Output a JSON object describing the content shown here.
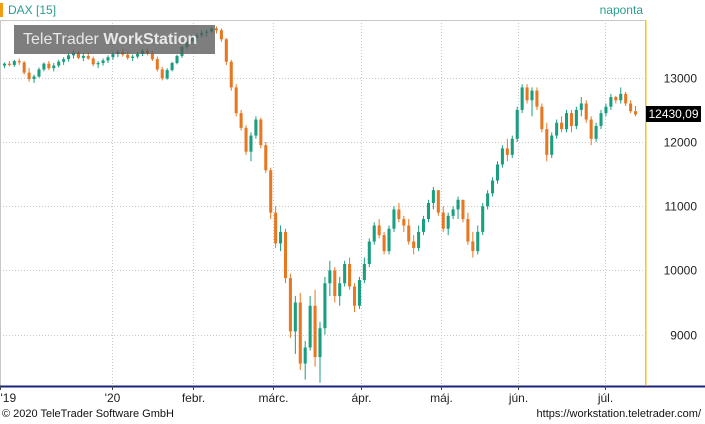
{
  "header": {
    "instrument": "DAX [15]",
    "period": "naponta"
  },
  "watermark": {
    "part1": "TeleTrader ",
    "part2": "WorkStation"
  },
  "footer": {
    "copyright": "© 2020 TeleTrader Software GmbH",
    "url": "https://workstation.teletrader.com/"
  },
  "last_price_label": "12430,09",
  "colors": {
    "up": "#1a9e80",
    "down": "#e87722",
    "accent": "#f39c12",
    "title": "#2a9d8f"
  },
  "chart_data": {
    "type": "candlestick",
    "title": "DAX [15]",
    "period": "naponta",
    "x_tick_labels": [
      "'19",
      "'20",
      "febr.",
      "márc.",
      "ápr.",
      "máj.",
      "jún.",
      "júl."
    ],
    "y_ticks": [
      9000,
      10000,
      11000,
      12000,
      13000
    ],
    "y_tick_labels": [
      "9000",
      "10000",
      "11000",
      "12000",
      "13000"
    ],
    "ylim": [
      8200,
      13900
    ],
    "last_value": 12430.09,
    "grid": true,
    "candles": [
      [
        13190,
        13240,
        13150,
        13220
      ],
      [
        13220,
        13260,
        13180,
        13200
      ],
      [
        13200,
        13280,
        13170,
        13260
      ],
      [
        13260,
        13300,
        13200,
        13240
      ],
      [
        13240,
        13260,
        13050,
        13080
      ],
      [
        13080,
        13150,
        12940,
        12980
      ],
      [
        12980,
        13050,
        12920,
        13020
      ],
      [
        13020,
        13160,
        13000,
        13130
      ],
      [
        13130,
        13240,
        13100,
        13220
      ],
      [
        13220,
        13260,
        13120,
        13150
      ],
      [
        13150,
        13230,
        13100,
        13190
      ],
      [
        13190,
        13280,
        13160,
        13250
      ],
      [
        13250,
        13320,
        13200,
        13290
      ],
      [
        13290,
        13380,
        13250,
        13350
      ],
      [
        13350,
        13430,
        13300,
        13390
      ],
      [
        13390,
        13420,
        13290,
        13310
      ],
      [
        13310,
        13380,
        13260,
        13340
      ],
      [
        13340,
        13400,
        13280,
        13300
      ],
      [
        13300,
        13330,
        13180,
        13210
      ],
      [
        13210,
        13260,
        13150,
        13230
      ],
      [
        13230,
        13300,
        13190,
        13270
      ],
      [
        13270,
        13350,
        13230,
        13320
      ],
      [
        13320,
        13400,
        13280,
        13370
      ],
      [
        13370,
        13430,
        13320,
        13400
      ],
      [
        13400,
        13450,
        13330,
        13360
      ],
      [
        13360,
        13400,
        13280,
        13310
      ],
      [
        13310,
        13360,
        13260,
        13330
      ],
      [
        13330,
        13400,
        13300,
        13370
      ],
      [
        13370,
        13450,
        13340,
        13420
      ],
      [
        13420,
        13460,
        13350,
        13380
      ],
      [
        13380,
        13420,
        13260,
        13290
      ],
      [
        13290,
        13330,
        13100,
        13130
      ],
      [
        13130,
        13170,
        12960,
        12990
      ],
      [
        12990,
        13150,
        12970,
        13120
      ],
      [
        13120,
        13250,
        13100,
        13230
      ],
      [
        13230,
        13360,
        13210,
        13340
      ],
      [
        13340,
        13500,
        13310,
        13480
      ],
      [
        13480,
        13600,
        13450,
        13570
      ],
      [
        13570,
        13660,
        13530,
        13620
      ],
      [
        13620,
        13700,
        13560,
        13660
      ],
      [
        13660,
        13740,
        13630,
        13700
      ],
      [
        13700,
        13750,
        13640,
        13720
      ],
      [
        13720,
        13790,
        13700,
        13770
      ],
      [
        13770,
        13800,
        13690,
        13740
      ],
      [
        13740,
        13770,
        13560,
        13600
      ],
      [
        13600,
        13620,
        13200,
        13250
      ],
      [
        13250,
        13280,
        12800,
        12850
      ],
      [
        12850,
        12900,
        12400,
        12450
      ],
      [
        12450,
        12500,
        12180,
        12220
      ],
      [
        12220,
        12260,
        11800,
        11850
      ],
      [
        11850,
        12150,
        11700,
        12100
      ],
      [
        12100,
        12400,
        12050,
        12350
      ],
      [
        12350,
        12380,
        11900,
        11950
      ],
      [
        11950,
        12000,
        11520,
        11560
      ],
      [
        11560,
        11600,
        10800,
        10900
      ],
      [
        10900,
        11000,
        10350,
        10420
      ],
      [
        10420,
        10700,
        10300,
        10600
      ],
      [
        10600,
        10650,
        9800,
        9880
      ],
      [
        9880,
        9950,
        8950,
        9050
      ],
      [
        9050,
        9600,
        8700,
        9500
      ],
      [
        9500,
        9650,
        8450,
        8550
      ],
      [
        8550,
        8900,
        8300,
        8800
      ],
      [
        8800,
        9600,
        8750,
        9450
      ],
      [
        9450,
        9700,
        8500,
        8650
      ],
      [
        8650,
        9200,
        8250,
        9100
      ],
      [
        9100,
        9900,
        9000,
        9800
      ],
      [
        9800,
        10150,
        9600,
        10000
      ],
      [
        10000,
        10050,
        9500,
        9600
      ],
      [
        9600,
        9900,
        9450,
        9800
      ],
      [
        9800,
        10150,
        9750,
        10100
      ],
      [
        10100,
        10200,
        9700,
        9750
      ],
      [
        9750,
        9800,
        9350,
        9450
      ],
      [
        9450,
        9900,
        9400,
        9850
      ],
      [
        9850,
        10200,
        9800,
        10100
      ],
      [
        10100,
        10500,
        10050,
        10450
      ],
      [
        10450,
        10750,
        10400,
        10700
      ],
      [
        10700,
        10800,
        10500,
        10550
      ],
      [
        10550,
        10600,
        10250,
        10300
      ],
      [
        10300,
        10700,
        10250,
        10650
      ],
      [
        10650,
        11000,
        10600,
        10950
      ],
      [
        10950,
        11050,
        10750,
        10800
      ],
      [
        10800,
        10850,
        10600,
        10700
      ],
      [
        10700,
        10800,
        10400,
        10450
      ],
      [
        10450,
        10550,
        10250,
        10350
      ],
      [
        10350,
        10700,
        10300,
        10600
      ],
      [
        10600,
        10850,
        10550,
        10800
      ],
      [
        10800,
        11100,
        10750,
        11050
      ],
      [
        11050,
        11300,
        10950,
        11250
      ],
      [
        11250,
        11250,
        10850,
        10900
      ],
      [
        10900,
        11000,
        10600,
        10650
      ],
      [
        10650,
        10900,
        10550,
        10850
      ],
      [
        10850,
        11000,
        10800,
        10950
      ],
      [
        10950,
        11150,
        10800,
        11100
      ],
      [
        11100,
        11100,
        10750,
        10800
      ],
      [
        10800,
        10900,
        10400,
        10450
      ],
      [
        10450,
        10600,
        10200,
        10300
      ],
      [
        10300,
        10700,
        10250,
        10600
      ],
      [
        10600,
        11050,
        10550,
        11000
      ],
      [
        11000,
        11250,
        10950,
        11200
      ],
      [
        11200,
        11450,
        11150,
        11400
      ],
      [
        11400,
        11700,
        11350,
        11650
      ],
      [
        11650,
        11950,
        11600,
        11900
      ],
      [
        11900,
        12050,
        11700,
        11800
      ],
      [
        11800,
        12100,
        11750,
        12050
      ],
      [
        12050,
        12550,
        12000,
        12500
      ],
      [
        12500,
        12900,
        12450,
        12850
      ],
      [
        12850,
        12900,
        12600,
        12650
      ],
      [
        12650,
        12850,
        12400,
        12800
      ],
      [
        12800,
        12850,
        12500,
        12550
      ],
      [
        12550,
        12600,
        12150,
        12200
      ],
      [
        12200,
        12300,
        11700,
        11800
      ],
      [
        11800,
        12150,
        11750,
        12100
      ],
      [
        12100,
        12350,
        12050,
        12300
      ],
      [
        12300,
        12400,
        12150,
        12200
      ],
      [
        12200,
        12500,
        12150,
        12450
      ],
      [
        12450,
        12500,
        12150,
        12250
      ],
      [
        12250,
        12550,
        12200,
        12500
      ],
      [
        12500,
        12700,
        12400,
        12600
      ],
      [
        12600,
        12650,
        12300,
        12350
      ],
      [
        12350,
        12400,
        11950,
        12050
      ],
      [
        12050,
        12300,
        12000,
        12250
      ],
      [
        12250,
        12500,
        12200,
        12450
      ],
      [
        12450,
        12600,
        12400,
        12550
      ],
      [
        12550,
        12750,
        12500,
        12700
      ],
      [
        12700,
        12720,
        12600,
        12650
      ],
      [
        12650,
        12850,
        12600,
        12750
      ],
      [
        12750,
        12780,
        12560,
        12600
      ],
      [
        12600,
        12650,
        12450,
        12480
      ],
      [
        12480,
        12560,
        12400,
        12430
      ]
    ]
  }
}
